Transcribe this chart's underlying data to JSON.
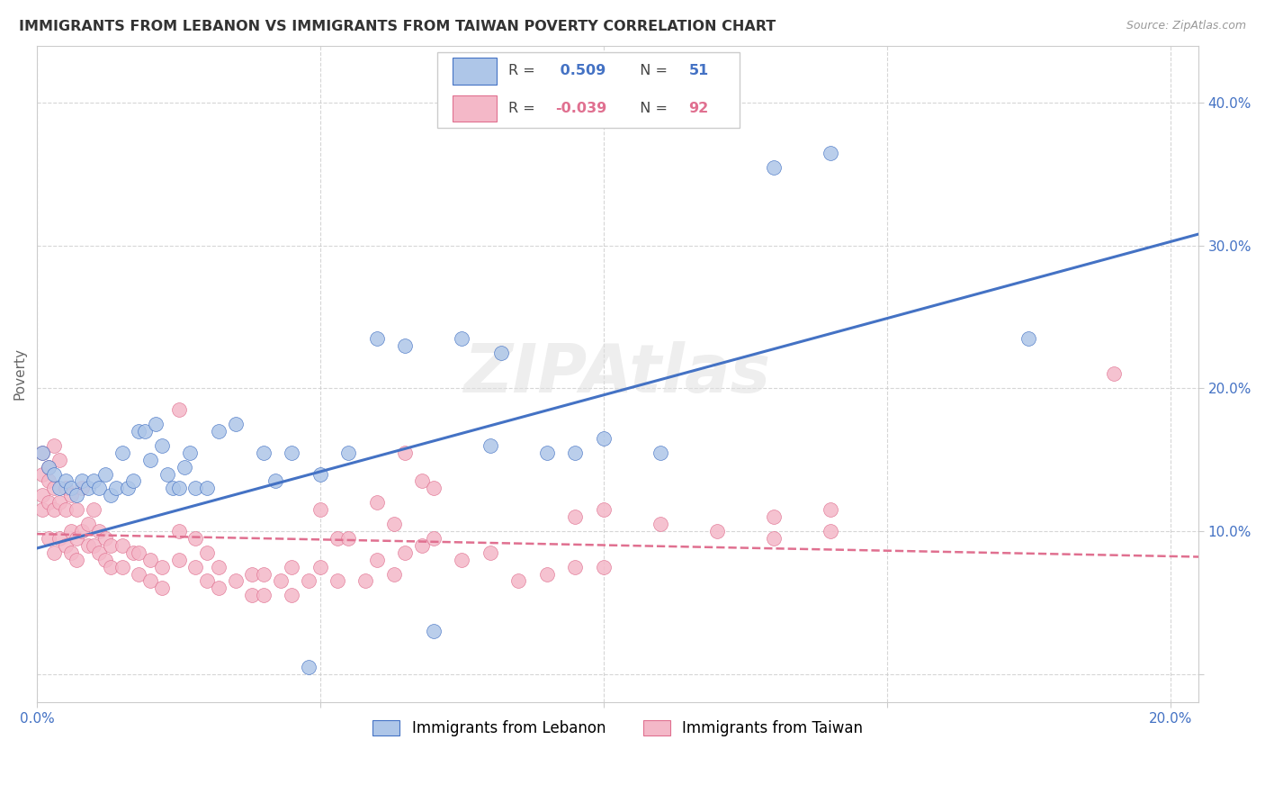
{
  "title": "IMMIGRANTS FROM LEBANON VS IMMIGRANTS FROM TAIWAN POVERTY CORRELATION CHART",
  "source": "Source: ZipAtlas.com",
  "ylabel": "Poverty",
  "xlim": [
    0.0,
    0.205
  ],
  "ylim": [
    -0.02,
    0.44
  ],
  "xticks": [
    0.0,
    0.05,
    0.1,
    0.15,
    0.2
  ],
  "xtick_labels": [
    "0.0%",
    "",
    "",
    "",
    "20.0%"
  ],
  "yticks": [
    0.0,
    0.1,
    0.2,
    0.3,
    0.4
  ],
  "ytick_labels": [
    "",
    "10.0%",
    "20.0%",
    "30.0%",
    "40.0%"
  ],
  "watermark": "ZIPAtlas",
  "lebanon_color": "#aec6e8",
  "taiwan_color": "#f4b8c8",
  "line_lebanon_color": "#4472c4",
  "line_taiwan_color": "#e07090",
  "lebanon_scatter": [
    [
      0.001,
      0.155
    ],
    [
      0.002,
      0.145
    ],
    [
      0.003,
      0.14
    ],
    [
      0.004,
      0.13
    ],
    [
      0.005,
      0.135
    ],
    [
      0.006,
      0.13
    ],
    [
      0.007,
      0.125
    ],
    [
      0.008,
      0.135
    ],
    [
      0.009,
      0.13
    ],
    [
      0.01,
      0.135
    ],
    [
      0.011,
      0.13
    ],
    [
      0.012,
      0.14
    ],
    [
      0.013,
      0.125
    ],
    [
      0.014,
      0.13
    ],
    [
      0.015,
      0.155
    ],
    [
      0.016,
      0.13
    ],
    [
      0.017,
      0.135
    ],
    [
      0.018,
      0.17
    ],
    [
      0.019,
      0.17
    ],
    [
      0.02,
      0.15
    ],
    [
      0.021,
      0.175
    ],
    [
      0.022,
      0.16
    ],
    [
      0.023,
      0.14
    ],
    [
      0.024,
      0.13
    ],
    [
      0.025,
      0.13
    ],
    [
      0.026,
      0.145
    ],
    [
      0.027,
      0.155
    ],
    [
      0.028,
      0.13
    ],
    [
      0.03,
      0.13
    ],
    [
      0.032,
      0.17
    ],
    [
      0.035,
      0.175
    ],
    [
      0.04,
      0.155
    ],
    [
      0.042,
      0.135
    ],
    [
      0.045,
      0.155
    ],
    [
      0.05,
      0.14
    ],
    [
      0.055,
      0.155
    ],
    [
      0.06,
      0.235
    ],
    [
      0.065,
      0.23
    ],
    [
      0.075,
      0.235
    ],
    [
      0.08,
      0.16
    ],
    [
      0.082,
      0.225
    ],
    [
      0.09,
      0.155
    ],
    [
      0.095,
      0.155
    ],
    [
      0.1,
      0.165
    ],
    [
      0.11,
      0.155
    ],
    [
      0.048,
      0.005
    ],
    [
      0.07,
      0.03
    ],
    [
      0.13,
      0.355
    ],
    [
      0.14,
      0.365
    ],
    [
      0.175,
      0.235
    ]
  ],
  "taiwan_scatter": [
    [
      0.001,
      0.155
    ],
    [
      0.001,
      0.14
    ],
    [
      0.001,
      0.125
    ],
    [
      0.001,
      0.115
    ],
    [
      0.002,
      0.145
    ],
    [
      0.002,
      0.135
    ],
    [
      0.002,
      0.12
    ],
    [
      0.002,
      0.095
    ],
    [
      0.003,
      0.16
    ],
    [
      0.003,
      0.13
    ],
    [
      0.003,
      0.115
    ],
    [
      0.003,
      0.085
    ],
    [
      0.004,
      0.15
    ],
    [
      0.004,
      0.12
    ],
    [
      0.004,
      0.095
    ],
    [
      0.005,
      0.13
    ],
    [
      0.005,
      0.115
    ],
    [
      0.005,
      0.09
    ],
    [
      0.006,
      0.125
    ],
    [
      0.006,
      0.1
    ],
    [
      0.006,
      0.085
    ],
    [
      0.007,
      0.115
    ],
    [
      0.007,
      0.095
    ],
    [
      0.007,
      0.08
    ],
    [
      0.008,
      0.13
    ],
    [
      0.008,
      0.1
    ],
    [
      0.009,
      0.105
    ],
    [
      0.009,
      0.09
    ],
    [
      0.01,
      0.115
    ],
    [
      0.01,
      0.09
    ],
    [
      0.011,
      0.1
    ],
    [
      0.011,
      0.085
    ],
    [
      0.012,
      0.095
    ],
    [
      0.012,
      0.08
    ],
    [
      0.013,
      0.09
    ],
    [
      0.013,
      0.075
    ],
    [
      0.015,
      0.09
    ],
    [
      0.015,
      0.075
    ],
    [
      0.017,
      0.085
    ],
    [
      0.018,
      0.085
    ],
    [
      0.018,
      0.07
    ],
    [
      0.02,
      0.08
    ],
    [
      0.02,
      0.065
    ],
    [
      0.022,
      0.075
    ],
    [
      0.022,
      0.06
    ],
    [
      0.025,
      0.185
    ],
    [
      0.025,
      0.1
    ],
    [
      0.025,
      0.08
    ],
    [
      0.028,
      0.095
    ],
    [
      0.028,
      0.075
    ],
    [
      0.03,
      0.085
    ],
    [
      0.03,
      0.065
    ],
    [
      0.032,
      0.075
    ],
    [
      0.032,
      0.06
    ],
    [
      0.035,
      0.065
    ],
    [
      0.038,
      0.07
    ],
    [
      0.038,
      0.055
    ],
    [
      0.04,
      0.07
    ],
    [
      0.04,
      0.055
    ],
    [
      0.043,
      0.065
    ],
    [
      0.045,
      0.075
    ],
    [
      0.045,
      0.055
    ],
    [
      0.048,
      0.065
    ],
    [
      0.05,
      0.115
    ],
    [
      0.05,
      0.075
    ],
    [
      0.053,
      0.095
    ],
    [
      0.053,
      0.065
    ],
    [
      0.055,
      0.095
    ],
    [
      0.058,
      0.065
    ],
    [
      0.06,
      0.12
    ],
    [
      0.06,
      0.08
    ],
    [
      0.063,
      0.105
    ],
    [
      0.063,
      0.07
    ],
    [
      0.065,
      0.155
    ],
    [
      0.065,
      0.085
    ],
    [
      0.068,
      0.135
    ],
    [
      0.068,
      0.09
    ],
    [
      0.07,
      0.13
    ],
    [
      0.07,
      0.095
    ],
    [
      0.075,
      0.08
    ],
    [
      0.08,
      0.085
    ],
    [
      0.085,
      0.065
    ],
    [
      0.09,
      0.07
    ],
    [
      0.095,
      0.11
    ],
    [
      0.095,
      0.075
    ],
    [
      0.1,
      0.115
    ],
    [
      0.1,
      0.075
    ],
    [
      0.11,
      0.105
    ],
    [
      0.12,
      0.1
    ],
    [
      0.13,
      0.11
    ],
    [
      0.13,
      0.095
    ],
    [
      0.14,
      0.115
    ],
    [
      0.14,
      0.1
    ],
    [
      0.19,
      0.21
    ]
  ],
  "lebanon_line_x": [
    0.0,
    0.205
  ],
  "lebanon_line_y": [
    0.088,
    0.308
  ],
  "taiwan_line_x": [
    0.0,
    0.205
  ],
  "taiwan_line_y": [
    0.098,
    0.082
  ]
}
